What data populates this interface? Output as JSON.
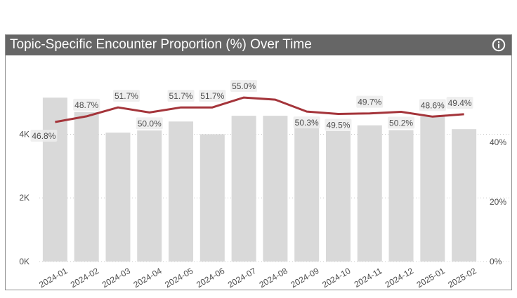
{
  "title": "Topic-Specific Encounter Proportion (%) Over Time",
  "icons": {
    "info": "info-circle-icon"
  },
  "colors": {
    "header": "#666666",
    "bar": "#d9d9d9",
    "line": "#a4343a",
    "label_bg": "#ececec"
  },
  "chart_data": {
    "type": "bar+line",
    "categories": [
      "2024-01",
      "2024-02",
      "2024-03",
      "2024-04",
      "2024-05",
      "2024-06",
      "2024-07",
      "2024-08",
      "2024-09",
      "2024-10",
      "2024-11",
      "2024-12",
      "2025-01",
      "2025-02"
    ],
    "bar_values": [
      5150,
      4700,
      4050,
      4120,
      4400,
      4000,
      4580,
      4580,
      4430,
      4100,
      4280,
      4130,
      4560,
      4160
    ],
    "line_values": [
      46.8,
      48.7,
      51.7,
      50.0,
      51.7,
      51.7,
      55.0,
      54.3,
      50.3,
      49.5,
      49.7,
      50.2,
      48.6,
      49.4
    ],
    "line_labels": [
      "46.8%",
      "48.7%",
      "51.7%",
      "50.0%",
      "51.7%",
      "51.7%",
      "55.0%",
      "",
      "50.3%",
      "49.5%",
      "49.7%",
      "50.2%",
      "48.6%",
      "49.4%"
    ],
    "y_left": {
      "min": 0,
      "max": 5200,
      "ticks": [
        0,
        2000,
        4000
      ],
      "tick_labels": [
        "0K",
        "2K",
        "4K"
      ]
    },
    "y_right": {
      "min": 0,
      "max": 55.5,
      "ticks": [
        0,
        20,
        40
      ],
      "tick_labels": [
        "0%",
        "20%",
        "40%"
      ]
    },
    "gridlines": true,
    "legend": "none"
  }
}
